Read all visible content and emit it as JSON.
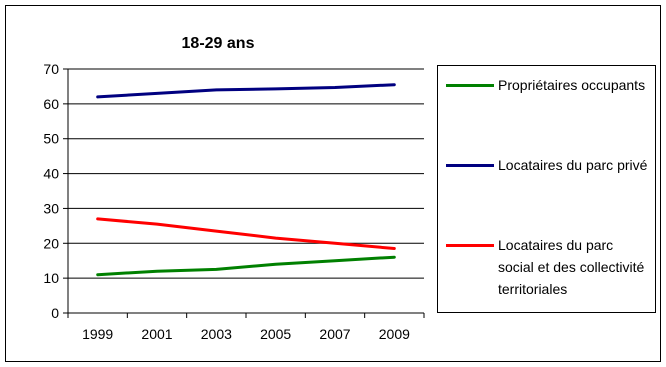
{
  "chart_data": {
    "type": "line",
    "title": "18-29 ans",
    "xlabel": "",
    "ylabel": "",
    "x": [
      "1999",
      "2001",
      "2003",
      "2005",
      "2007",
      "2009"
    ],
    "ylim": [
      0,
      70
    ],
    "yticks": [
      "0",
      "10",
      "20",
      "30",
      "40",
      "50",
      "60",
      "70"
    ],
    "grid": "horizontal",
    "legend_position": "right",
    "series": [
      {
        "name": "Propriétaires occupants",
        "color": "#008000",
        "values": [
          11,
          12,
          12.5,
          14,
          15,
          16
        ]
      },
      {
        "name": "Locataires du parc privé",
        "color": "#000080",
        "values": [
          62,
          63,
          64,
          64.3,
          64.7,
          65.5
        ]
      },
      {
        "name": "Locataires du parc social et des collectivité territoriales",
        "color": "#ff0000",
        "values": [
          27,
          25.5,
          23.5,
          21.5,
          20,
          18.5
        ]
      }
    ]
  }
}
